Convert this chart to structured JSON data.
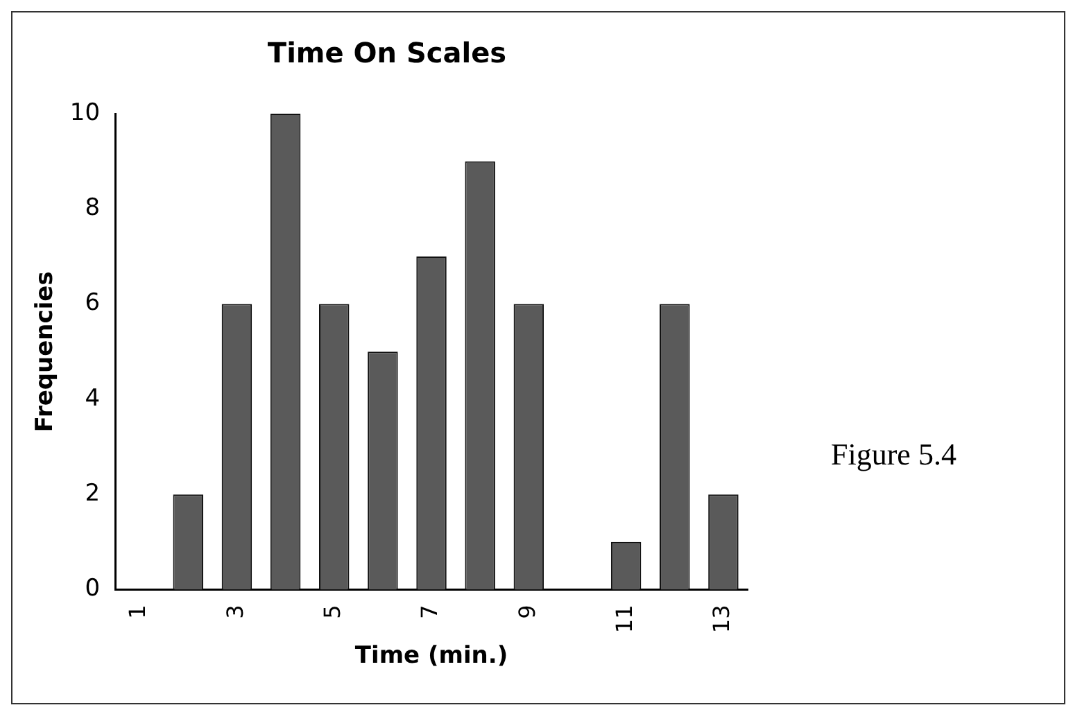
{
  "chart_data": {
    "type": "bar",
    "title": "Time On Scales",
    "xlabel": "Time (min.)",
    "ylabel": "Frequencies",
    "categories": [
      "1",
      null,
      "3",
      null,
      "5",
      null,
      "7",
      null,
      "9",
      null,
      "11",
      null,
      "13"
    ],
    "values": [
      0,
      2,
      6,
      10,
      6,
      5,
      7,
      9,
      6,
      0,
      1,
      6,
      2
    ],
    "color": "#5a5a5a",
    "ylim": [
      0,
      10
    ],
    "yticks": [
      0,
      2,
      4,
      6,
      8,
      10
    ],
    "grid": false,
    "legend": false,
    "annotations": [
      "Figure 5.4"
    ]
  }
}
